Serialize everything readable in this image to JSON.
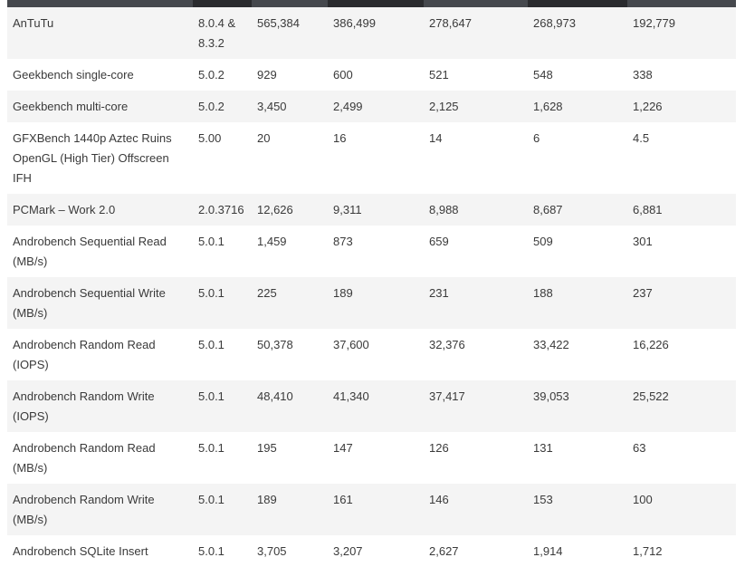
{
  "header_colors": [
    "#45484d",
    "#2a2b2e",
    "#45484d",
    "#2a2b2e",
    "#45484d",
    "#2a2b2e",
    "#45484d"
  ],
  "rows": [
    {
      "cells": [
        "AnTuTu",
        "8.0.4 & 8.3.2",
        "565,384",
        "386,499",
        "278,647",
        "268,973",
        "192,779"
      ]
    },
    {
      "cells": [
        "Geekbench single-core",
        "5.0.2",
        "929",
        "600",
        "521",
        "548",
        "338"
      ]
    },
    {
      "cells": [
        "Geekbench multi-core",
        "5.0.2",
        "3,450",
        "2,499",
        "2,125",
        "1,628",
        "1,226"
      ]
    },
    {
      "cells": [
        "GFXBench 1440p Aztec Ruins OpenGL (High Tier) Offscreen IFH",
        "5.00",
        "20",
        "16",
        "14",
        "6",
        "4.5"
      ]
    },
    {
      "cells": [
        "PCMark – Work 2.0",
        "2.0.3716",
        "12,626",
        "9,311",
        "8,988",
        "8,687",
        "6,881"
      ]
    },
    {
      "cells": [
        "Androbench Sequential Read (MB/s)",
        "5.0.1",
        "1,459",
        "873",
        "659",
        "509",
        "301"
      ]
    },
    {
      "cells": [
        "Androbench Sequential Write (MB/s)",
        "5.0.1",
        "225",
        "189",
        "231",
        "188",
        "237"
      ]
    },
    {
      "cells": [
        "Androbench Random Read (IOPS)",
        "5.0.1",
        "50,378",
        "37,600",
        "32,376",
        "33,422",
        "16,226"
      ]
    },
    {
      "cells": [
        "Androbench Random Write (IOPS)",
        "5.0.1",
        "48,410",
        "41,340",
        "37,417",
        "39,053",
        "25,522"
      ]
    },
    {
      "cells": [
        "Androbench Random Read (MB/s)",
        "5.0.1",
        "195",
        "147",
        "126",
        "131",
        "63"
      ]
    },
    {
      "cells": [
        "Androbench Random Write (MB/s)",
        "5.0.1",
        "189",
        "161",
        "146",
        "153",
        "100"
      ]
    },
    {
      "cells": [
        "Androbench SQLite Insert",
        "5.0.1",
        "3,705",
        "3,207",
        "2,627",
        "1,914",
        "1,712"
      ]
    }
  ]
}
